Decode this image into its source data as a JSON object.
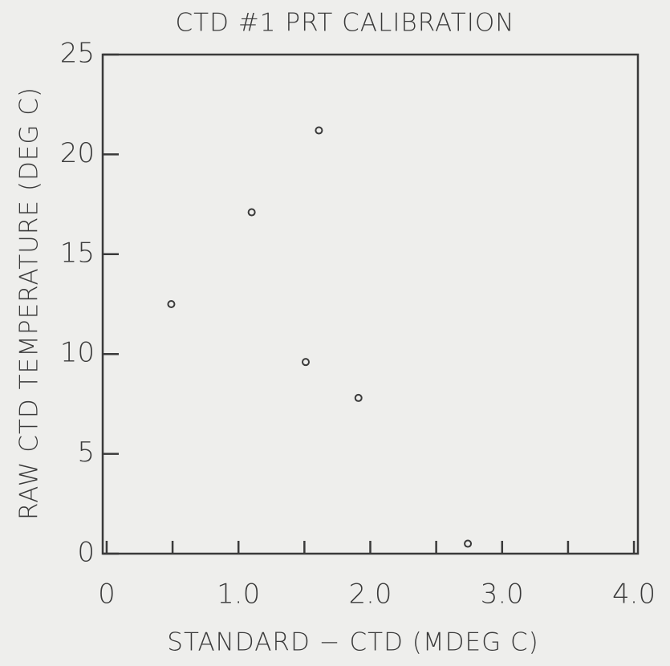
{
  "chart_data": {
    "type": "scatter",
    "title": "CTD #1 PRT CALIBRATION",
    "xlabel": "STANDARD − CTD (MDEG C)",
    "ylabel": "RAW CTD TEMPERATURE (DEG C)",
    "x": [
      1.61,
      1.1,
      0.49,
      1.51,
      1.91,
      2.74
    ],
    "values": [
      21.2,
      17.1,
      12.5,
      9.6,
      7.8,
      0.5
    ],
    "color": "#3a3a3a",
    "xlim": [
      -0.03,
      4.03
    ],
    "ylim": [
      0,
      25
    ],
    "xticks": [
      0,
      {
        "value": 1,
        "label": "1.0"
      },
      {
        "value": 2,
        "label": "2.0"
      },
      {
        "value": 3,
        "label": "3.0"
      },
      {
        "value": 4,
        "label": "4.0"
      }
    ],
    "xminor_ticks": [
      0.5,
      1.5,
      2.5,
      3.5
    ],
    "yticks": [
      0,
      5,
      10,
      15,
      20,
      25
    ],
    "grid": false
  }
}
